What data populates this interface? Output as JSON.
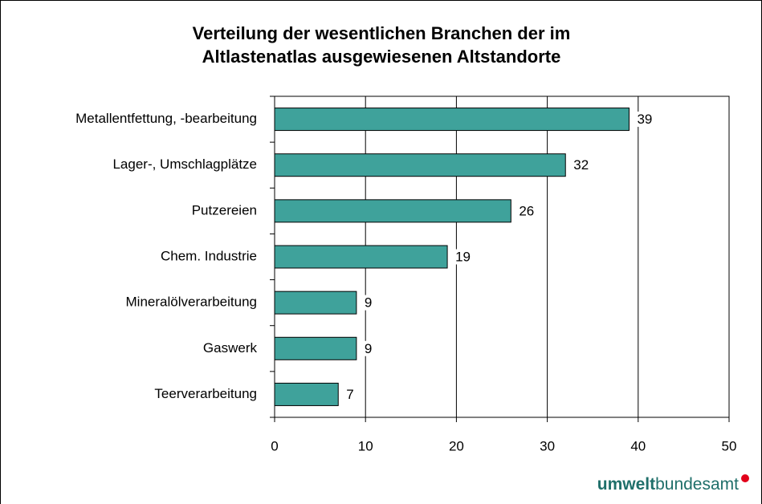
{
  "chart_data": {
    "type": "bar",
    "orientation": "horizontal",
    "title": [
      "Verteilung der wesentlichen Branchen der im",
      "Altlastenatlas ausgewiesenen Altstandorte"
    ],
    "categories": [
      "Metallentfettung, -bearbeitung",
      "Lager-, Umschlagplätze",
      "Putzereien",
      "Chem. Industrie",
      "Mineralölverarbeitung",
      "Gaswerk",
      "Teerverarbeitung"
    ],
    "values": [
      39,
      32,
      26,
      19,
      9,
      9,
      7
    ],
    "color": "#3fa29b",
    "xlim": [
      0,
      50
    ],
    "xticks": [
      0,
      10,
      20,
      30,
      40,
      50
    ],
    "grid": true
  },
  "logo": {
    "bold": "umwelt",
    "regular": "bundesamt"
  }
}
